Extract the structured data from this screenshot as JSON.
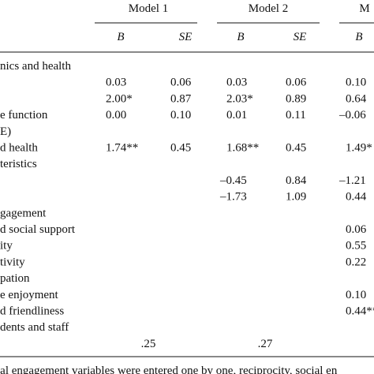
{
  "table": {
    "models": [
      "Model 1",
      "Model 2",
      "M"
    ],
    "subheaders": [
      "B",
      "SE",
      "B",
      "SE",
      "B"
    ],
    "rows": [
      {
        "label": "nics and health",
        "cells": [
          null,
          null,
          null,
          null,
          null
        ]
      },
      {
        "label": null,
        "cells": [
          "0.03",
          "0.06",
          "0.03",
          "0.06",
          "0.10"
        ]
      },
      {
        "label": null,
        "cells": [
          "2.00*",
          "0.87",
          "2.03*",
          "0.89",
          "0.64"
        ]
      },
      {
        "label": "e function",
        "cells": [
          "0.00",
          "0.10",
          "0.01",
          "0.11",
          "–0.06"
        ]
      },
      {
        "label": "E)",
        "cells": [
          null,
          null,
          null,
          null,
          null
        ]
      },
      {
        "label": "d health",
        "cells": [
          "1.74**",
          "0.45",
          "1.68**",
          "0.45",
          "1.49*"
        ]
      },
      {
        "label": "teristics",
        "cells": [
          null,
          null,
          null,
          null,
          null
        ]
      },
      {
        "label": null,
        "cells": [
          null,
          null,
          "–0.45",
          "0.84",
          "–1.21"
        ]
      },
      {
        "label": null,
        "cells": [
          null,
          null,
          "–1.73",
          "1.09",
          "0.44"
        ]
      },
      {
        "label": "gagement",
        "cells": [
          null,
          null,
          null,
          null,
          null
        ]
      },
      {
        "label": "d social support",
        "cells": [
          null,
          null,
          null,
          null,
          "0.06"
        ]
      },
      {
        "label": "ity",
        "cells": [
          null,
          null,
          null,
          null,
          "0.55"
        ]
      },
      {
        "label": "tivity",
        "cells": [
          null,
          null,
          null,
          null,
          "0.22"
        ]
      },
      {
        "label": "pation",
        "cells": [
          null,
          null,
          null,
          null,
          null
        ]
      },
      {
        "label": "e enjoyment",
        "cells": [
          null,
          null,
          null,
          null,
          "0.10"
        ]
      },
      {
        "label": "d friendliness",
        "cells": [
          null,
          null,
          null,
          null,
          "0.44**"
        ]
      },
      {
        "label": "dents and staff",
        "cells": [
          null,
          null,
          null,
          null,
          null
        ]
      }
    ],
    "r2": [
      ".25",
      ".27"
    ],
    "note": "ial engagement variables were entered one by one, reciprocity, social en"
  }
}
